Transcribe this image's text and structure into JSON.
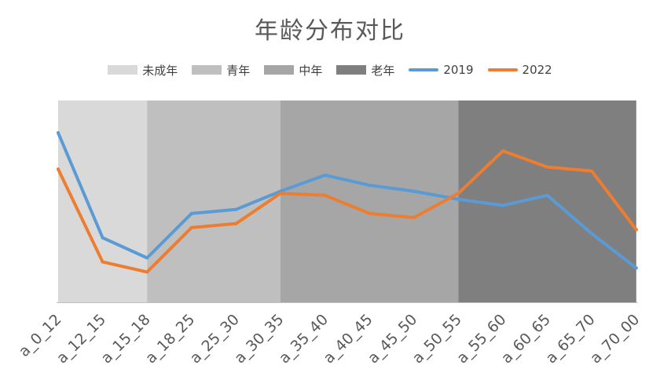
{
  "chart_data": {
    "type": "line",
    "title": "年龄分布对比",
    "xlabel": "",
    "ylabel": "",
    "categories": [
      "a_0_12",
      "a_12_15",
      "a_15_18",
      "a_18_25",
      "a_25_30",
      "a_30_35",
      "a_35_40",
      "a_40_45",
      "a_45_50",
      "a_50_55",
      "a_55_60",
      "a_60_65",
      "a_65_70",
      "a_70_00"
    ],
    "bands": [
      {
        "name": "未成年",
        "from": 0,
        "to": 2,
        "color": "#d9d9d9"
      },
      {
        "name": "青年",
        "from": 2,
        "to": 5,
        "color": "#bfbfbf"
      },
      {
        "name": "中年",
        "from": 5,
        "to": 9,
        "color": "#a6a6a6"
      },
      {
        "name": "老年",
        "from": 9,
        "to": 13,
        "color": "#7f7f7f"
      }
    ],
    "series": [
      {
        "name": "2019",
        "color": "#5b9bd5",
        "values": [
          84,
          32,
          22,
          44,
          46,
          55,
          63,
          58,
          55,
          51,
          48,
          53,
          34,
          17
        ]
      },
      {
        "name": "2022",
        "color": "#ed7d31",
        "values": [
          66,
          20,
          15,
          37,
          39,
          54,
          53,
          44,
          42,
          54,
          75,
          67,
          65,
          36
        ]
      }
    ],
    "ylim": [
      0,
      100
    ],
    "grid": false,
    "legend": "top"
  }
}
